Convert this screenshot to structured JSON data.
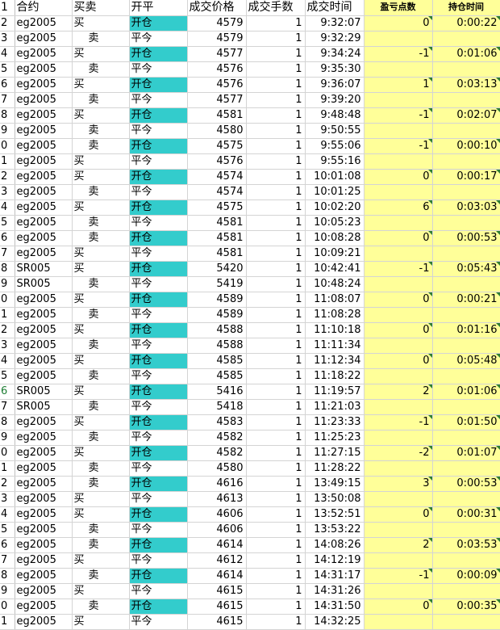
{
  "headers": [
    "合约",
    "买卖",
    "开平",
    "成交价格",
    "成交手数",
    "成交时间",
    "盈亏点数",
    "持仓时间"
  ],
  "colors": {
    "open": "#33cccc",
    "yellow": "#ffff99",
    "comment_marker": "#2e7d32"
  },
  "rows": [
    {
      "rn": "2",
      "contract": "eg2005",
      "side": "买",
      "oc": "开仓",
      "price": "4579",
      "qty": "1",
      "time": "9:32:07",
      "pnl": "0",
      "hold": "0:00:22"
    },
    {
      "rn": "3",
      "contract": "eg2005",
      "side": "卖",
      "oc": "平今",
      "price": "4579",
      "qty": "1",
      "time": "9:32:29",
      "pnl": "",
      "hold": ""
    },
    {
      "rn": "4",
      "contract": "eg2005",
      "side": "买",
      "oc": "开仓",
      "price": "4577",
      "qty": "1",
      "time": "9:34:24",
      "pnl": "-1",
      "hold": "0:01:06"
    },
    {
      "rn": "5",
      "contract": "eg2005",
      "side": "卖",
      "oc": "平今",
      "price": "4576",
      "qty": "1",
      "time": "9:35:30",
      "pnl": "",
      "hold": ""
    },
    {
      "rn": "6",
      "contract": "eg2005",
      "side": "买",
      "oc": "开仓",
      "price": "4576",
      "qty": "1",
      "time": "9:36:07",
      "pnl": "1",
      "hold": "0:03:13"
    },
    {
      "rn": "7",
      "contract": "eg2005",
      "side": "卖",
      "oc": "平今",
      "price": "4577",
      "qty": "1",
      "time": "9:39:20",
      "pnl": "",
      "hold": ""
    },
    {
      "rn": "8",
      "contract": "eg2005",
      "side": "买",
      "oc": "开仓",
      "price": "4581",
      "qty": "1",
      "time": "9:48:48",
      "pnl": "-1",
      "hold": "0:02:07"
    },
    {
      "rn": "9",
      "contract": "eg2005",
      "side": "卖",
      "oc": "平今",
      "price": "4580",
      "qty": "1",
      "time": "9:50:55",
      "pnl": "",
      "hold": ""
    },
    {
      "rn": "0",
      "contract": "eg2005",
      "side": "卖",
      "oc": "开仓",
      "price": "4575",
      "qty": "1",
      "time": "9:55:06",
      "pnl": "-1",
      "hold": "0:00:10"
    },
    {
      "rn": "1",
      "contract": "eg2005",
      "side": "买",
      "oc": "平今",
      "price": "4576",
      "qty": "1",
      "time": "9:55:16",
      "pnl": "",
      "hold": ""
    },
    {
      "rn": "2",
      "contract": "eg2005",
      "side": "买",
      "oc": "开仓",
      "price": "4574",
      "qty": "1",
      "time": "10:01:08",
      "pnl": "0",
      "hold": "0:00:17"
    },
    {
      "rn": "3",
      "contract": "eg2005",
      "side": "卖",
      "oc": "平今",
      "price": "4574",
      "qty": "1",
      "time": "10:01:25",
      "pnl": "",
      "hold": ""
    },
    {
      "rn": "4",
      "contract": "eg2005",
      "side": "买",
      "oc": "开仓",
      "price": "4575",
      "qty": "1",
      "time": "10:02:20",
      "pnl": "6",
      "hold": "0:03:03"
    },
    {
      "rn": "5",
      "contract": "eg2005",
      "side": "卖",
      "oc": "平今",
      "price": "4581",
      "qty": "1",
      "time": "10:05:23",
      "pnl": "",
      "hold": ""
    },
    {
      "rn": "6",
      "contract": "eg2005",
      "side": "卖",
      "oc": "开仓",
      "price": "4581",
      "qty": "1",
      "time": "10:08:28",
      "pnl": "0",
      "hold": "0:00:53"
    },
    {
      "rn": "7",
      "contract": "eg2005",
      "side": "买",
      "oc": "平今",
      "price": "4581",
      "qty": "1",
      "time": "10:09:21",
      "pnl": "",
      "hold": ""
    },
    {
      "rn": "8",
      "contract": "SR005",
      "side": "买",
      "oc": "开仓",
      "price": "5420",
      "qty": "1",
      "time": "10:42:41",
      "pnl": "-1",
      "hold": "0:05:43"
    },
    {
      "rn": "9",
      "contract": "SR005",
      "side": "卖",
      "oc": "平今",
      "price": "5419",
      "qty": "1",
      "time": "10:48:24",
      "pnl": "",
      "hold": ""
    },
    {
      "rn": "0",
      "contract": "eg2005",
      "side": "买",
      "oc": "开仓",
      "price": "4589",
      "qty": "1",
      "time": "11:08:07",
      "pnl": "0",
      "hold": "0:00:21"
    },
    {
      "rn": "1",
      "contract": "eg2005",
      "side": "卖",
      "oc": "平今",
      "price": "4589",
      "qty": "1",
      "time": "11:08:28",
      "pnl": "",
      "hold": ""
    },
    {
      "rn": "2",
      "contract": "eg2005",
      "side": "买",
      "oc": "开仓",
      "price": "4588",
      "qty": "1",
      "time": "11:10:18",
      "pnl": "0",
      "hold": "0:01:16"
    },
    {
      "rn": "3",
      "contract": "eg2005",
      "side": "卖",
      "oc": "平今",
      "price": "4588",
      "qty": "1",
      "time": "11:11:34",
      "pnl": "",
      "hold": ""
    },
    {
      "rn": "4",
      "contract": "eg2005",
      "side": "买",
      "oc": "开仓",
      "price": "4585",
      "qty": "1",
      "time": "11:12:34",
      "pnl": "0",
      "hold": "0:05:48"
    },
    {
      "rn": "5",
      "contract": "eg2005",
      "side": "卖",
      "oc": "平今",
      "price": "4585",
      "qty": "1",
      "time": "11:18:22",
      "pnl": "",
      "hold": ""
    },
    {
      "rn": "6",
      "contract": "SR005",
      "side": "买",
      "oc": "开仓",
      "price": "5416",
      "qty": "1",
      "time": "11:19:57",
      "pnl": "2",
      "hold": "0:01:06",
      "green": true
    },
    {
      "rn": "7",
      "contract": "SR005",
      "side": "卖",
      "oc": "平今",
      "price": "5418",
      "qty": "1",
      "time": "11:21:03",
      "pnl": "",
      "hold": ""
    },
    {
      "rn": "8",
      "contract": "eg2005",
      "side": "买",
      "oc": "开仓",
      "price": "4583",
      "qty": "1",
      "time": "11:23:33",
      "pnl": "-1",
      "hold": "0:01:50"
    },
    {
      "rn": "9",
      "contract": "eg2005",
      "side": "卖",
      "oc": "平今",
      "price": "4582",
      "qty": "1",
      "time": "11:25:23",
      "pnl": "",
      "hold": ""
    },
    {
      "rn": "0",
      "contract": "eg2005",
      "side": "买",
      "oc": "开仓",
      "price": "4582",
      "qty": "1",
      "time": "11:27:15",
      "pnl": "-2",
      "hold": "0:01:07"
    },
    {
      "rn": "1",
      "contract": "eg2005",
      "side": "卖",
      "oc": "平今",
      "price": "4580",
      "qty": "1",
      "time": "11:28:22",
      "pnl": "",
      "hold": ""
    },
    {
      "rn": "2",
      "contract": "eg2005",
      "side": "卖",
      "oc": "开仓",
      "price": "4616",
      "qty": "1",
      "time": "13:49:15",
      "pnl": "3",
      "hold": "0:00:53"
    },
    {
      "rn": "3",
      "contract": "eg2005",
      "side": "买",
      "oc": "平今",
      "price": "4613",
      "qty": "1",
      "time": "13:50:08",
      "pnl": "",
      "hold": ""
    },
    {
      "rn": "4",
      "contract": "eg2005",
      "side": "买",
      "oc": "开仓",
      "price": "4606",
      "qty": "1",
      "time": "13:52:51",
      "pnl": "0",
      "hold": "0:00:31"
    },
    {
      "rn": "5",
      "contract": "eg2005",
      "side": "卖",
      "oc": "平今",
      "price": "4606",
      "qty": "1",
      "time": "13:53:22",
      "pnl": "",
      "hold": ""
    },
    {
      "rn": "6",
      "contract": "eg2005",
      "side": "卖",
      "oc": "开仓",
      "price": "4614",
      "qty": "1",
      "time": "14:08:26",
      "pnl": "2",
      "hold": "0:03:53"
    },
    {
      "rn": "7",
      "contract": "eg2005",
      "side": "买",
      "oc": "平今",
      "price": "4612",
      "qty": "1",
      "time": "14:12:19",
      "pnl": "",
      "hold": ""
    },
    {
      "rn": "8",
      "contract": "eg2005",
      "side": "卖",
      "oc": "开仓",
      "price": "4614",
      "qty": "1",
      "time": "14:31:17",
      "pnl": "-1",
      "hold": "0:00:09"
    },
    {
      "rn": "9",
      "contract": "eg2005",
      "side": "买",
      "oc": "平今",
      "price": "4615",
      "qty": "1",
      "time": "14:31:26",
      "pnl": "",
      "hold": ""
    },
    {
      "rn": "0",
      "contract": "eg2005",
      "side": "卖",
      "oc": "开仓",
      "price": "4615",
      "qty": "1",
      "time": "14:31:50",
      "pnl": "0",
      "hold": "0:00:35"
    },
    {
      "rn": "1",
      "contract": "eg2005",
      "side": "买",
      "oc": "平今",
      "price": "4615",
      "qty": "1",
      "time": "14:32:25",
      "pnl": "",
      "hold": ""
    }
  ]
}
